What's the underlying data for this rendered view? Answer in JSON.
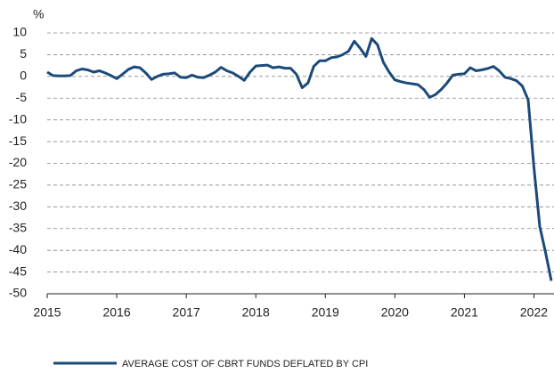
{
  "chart_data": {
    "type": "line",
    "y_label": "%",
    "x": [
      2015,
      2015.083,
      2015.167,
      2015.25,
      2015.333,
      2015.417,
      2015.5,
      2015.583,
      2015.667,
      2015.75,
      2015.833,
      2015.917,
      2016,
      2016.083,
      2016.167,
      2016.25,
      2016.333,
      2016.417,
      2016.5,
      2016.583,
      2016.667,
      2016.75,
      2016.833,
      2016.917,
      2017,
      2017.083,
      2017.167,
      2017.25,
      2017.333,
      2017.417,
      2017.5,
      2017.583,
      2017.667,
      2017.75,
      2017.833,
      2017.917,
      2018,
      2018.083,
      2018.167,
      2018.25,
      2018.333,
      2018.417,
      2018.5,
      2018.583,
      2018.667,
      2018.75,
      2018.833,
      2018.917,
      2019,
      2019.083,
      2019.167,
      2019.25,
      2019.333,
      2019.417,
      2019.5,
      2019.583,
      2019.667,
      2019.75,
      2019.833,
      2019.917,
      2020,
      2020.083,
      2020.167,
      2020.25,
      2020.333,
      2020.417,
      2020.5,
      2020.583,
      2020.667,
      2020.75,
      2020.833,
      2020.917,
      2021,
      2021.083,
      2021.167,
      2021.25,
      2021.333,
      2021.417,
      2021.5,
      2021.583,
      2021.667,
      2021.75,
      2021.833,
      2021.917,
      2022,
      2022.083,
      2022.167,
      2022.25
    ],
    "series": [
      {
        "name": "AVERAGE COST OF CBRT FUNDS DEFLATED BY CPI",
        "color": "#1b4a7a",
        "values": [
          1,
          0.2,
          0.1,
          0.1,
          0.2,
          1.3,
          1.7,
          1.5,
          1,
          1.3,
          0.8,
          0.2,
          -0.5,
          0.5,
          1.6,
          2.2,
          2,
          0.8,
          -0.7,
          0,
          0.5,
          0.6,
          0.8,
          -0.2,
          -0.3,
          0.3,
          -0.2,
          -0.3,
          0.3,
          1,
          2.1,
          1.3,
          0.8,
          0,
          -0.9,
          1,
          2.4,
          2.5,
          2.6,
          2,
          2.2,
          1.9,
          1.9,
          0.5,
          -2.6,
          -1.5,
          2.3,
          3.6,
          3.6,
          4.3,
          4.5,
          5,
          5.8,
          8.1,
          6.5,
          4.6,
          8.7,
          7.3,
          3.3,
          1,
          -0.8,
          -1.2,
          -1.5,
          -1.7,
          -1.9,
          -3,
          -4.8,
          -4.2,
          -3,
          -1.5,
          0.3,
          0.5,
          0.6,
          2,
          1.3,
          1.5,
          1.8,
          2.3,
          1.3,
          -0.2,
          -0.5,
          -1,
          -2.2,
          -5.4,
          -21,
          -34.5,
          -40.5,
          -47
        ]
      }
    ],
    "xlim": [
      2015,
      2022.25
    ],
    "xticks": [
      2015,
      2016,
      2017,
      2018,
      2019,
      2020,
      2021,
      2022
    ],
    "ylim": [
      -50,
      10
    ],
    "yticks": [
      -50,
      -45,
      -40,
      -35,
      -30,
      -25,
      -20,
      -15,
      -10,
      -5,
      0,
      5,
      10
    ],
    "grid": true,
    "legend": "bottom"
  }
}
